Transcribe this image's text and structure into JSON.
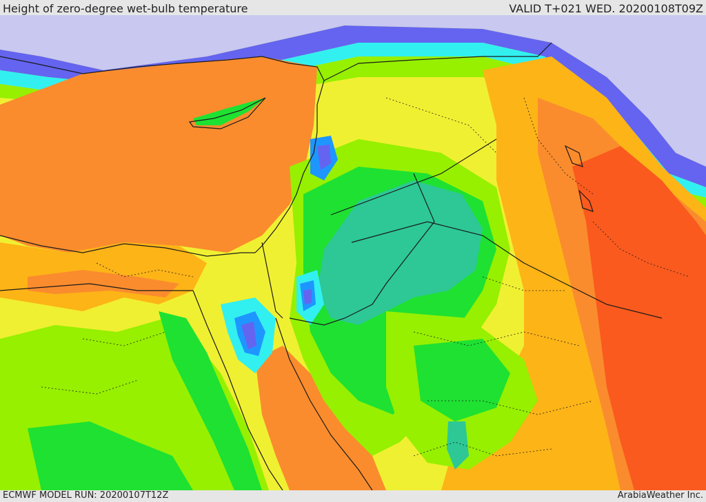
{
  "header": {
    "title": "Height of zero-degree wet-bulb temperature",
    "valid": "VALID T+021 WED. 20200108T09Z"
  },
  "footer": {
    "model_run": "ECMWF MODEL RUN: 20200107T12Z",
    "credit": "ArabiaWeather Inc."
  },
  "colors": {
    "highest": "#fa5a1e",
    "very_high": "#fa8c2d",
    "high": "#fdb417",
    "mid_high": "#f0f032",
    "mid": "#96f000",
    "mid_low": "#1ee132",
    "low": "#2dc896",
    "lower": "#32f0f0",
    "very_low": "#1e96ff",
    "lowest": "#6464f0",
    "none": "#c8c8f0",
    "border": "#1a1a1a"
  }
}
